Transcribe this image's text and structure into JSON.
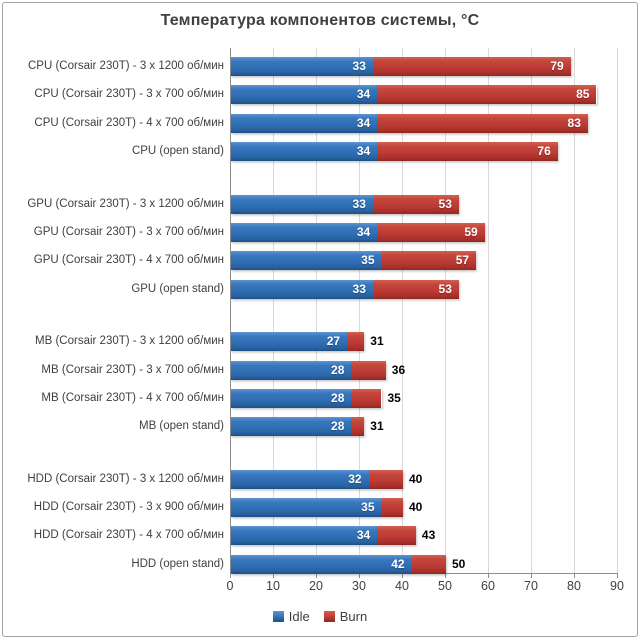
{
  "chart_data": {
    "type": "bar",
    "orientation": "horizontal",
    "title": "Температура компонентов системы, °C",
    "xlabel": "",
    "ylabel": "",
    "xlim": [
      0,
      90
    ],
    "xticks": [
      0,
      10,
      20,
      30,
      40,
      50,
      60,
      70,
      80,
      90
    ],
    "grid": "vertical-major",
    "legend_position": "bottom-center",
    "series_meta": [
      {
        "name": "Idle",
        "color": "#3173B9"
      },
      {
        "name": "Burn",
        "color": "#BB3A34"
      }
    ],
    "groups": [
      {
        "component": "CPU",
        "burn_label_inside": true,
        "rows": [
          {
            "label": "CPU (Corsair 230T) - 3 x 1200 об/мин",
            "idle": 33,
            "burn": 79
          },
          {
            "label": "CPU (Corsair 230T) - 3 x 700 об/мин",
            "idle": 34,
            "burn": 85
          },
          {
            "label": "CPU (Corsair 230T) - 4 x 700 об/мин",
            "idle": 34,
            "burn": 83
          },
          {
            "label": "CPU (open stand)",
            "idle": 34,
            "burn": 76
          }
        ]
      },
      {
        "component": "GPU",
        "burn_label_inside": true,
        "rows": [
          {
            "label": "GPU (Corsair 230T) - 3 x 1200 об/мин",
            "idle": 33,
            "burn": 53
          },
          {
            "label": "GPU (Corsair 230T) - 3 x 700 об/мин",
            "idle": 34,
            "burn": 59
          },
          {
            "label": "GPU (Corsair 230T) - 4 x 700 об/мин",
            "idle": 35,
            "burn": 57
          },
          {
            "label": "GPU (open stand)",
            "idle": 33,
            "burn": 53
          }
        ]
      },
      {
        "component": "MB",
        "burn_label_inside": false,
        "rows": [
          {
            "label": "MB (Corsair 230T) - 3 x 1200 об/мин",
            "idle": 27,
            "burn": 31
          },
          {
            "label": "MB (Corsair 230T) - 3 x 700 об/мин",
            "idle": 28,
            "burn": 36
          },
          {
            "label": "MB (Corsair 230T) - 4 x 700 об/мин",
            "idle": 28,
            "burn": 35
          },
          {
            "label": "MB (open stand)",
            "idle": 28,
            "burn": 31
          }
        ]
      },
      {
        "component": "HDD",
        "burn_label_inside": false,
        "rows": [
          {
            "label": "HDD (Corsair 230T) - 3 x 1200 об/мин",
            "idle": 32,
            "burn": 40
          },
          {
            "label": "HDD (Corsair 230T) - 3 x 900 об/мин",
            "idle": 35,
            "burn": 40
          },
          {
            "label": "HDD (Corsair 230T) - 4 x 700 об/мин",
            "idle": 34,
            "burn": 43
          },
          {
            "label": "HDD (open stand)",
            "idle": 42,
            "burn": 50
          }
        ]
      }
    ],
    "legend": [
      {
        "label": "Idle",
        "series": "idle"
      },
      {
        "label": "Burn",
        "series": "burn"
      }
    ]
  },
  "frame": {
    "background": "#FFFFFF",
    "border_color": "#A3A3A3",
    "gridline_color": "#D9D9D9",
    "axis_color": "#8E8E8E"
  }
}
